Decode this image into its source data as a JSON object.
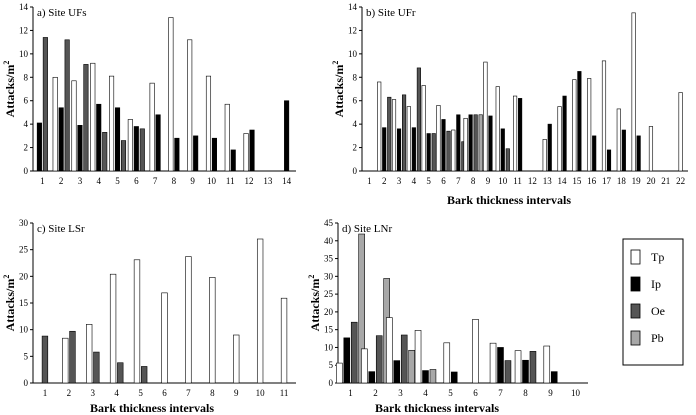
{
  "colors": {
    "Tp": "#ffffff",
    "Ip": "#000000",
    "Oe": "#555555",
    "Pb": "#a8a8a8"
  },
  "legend": {
    "items": [
      "Tp",
      "Ip",
      "Oe",
      "Pb"
    ]
  },
  "chart_data": [
    {
      "type": "bar",
      "title": "a) Site UFs",
      "xlabel": "",
      "ylabel": "Attacks/m",
      "ylabel_sup": "2",
      "ylim": [
        0,
        14
      ],
      "yticks": [
        0,
        2,
        4,
        6,
        8,
        10,
        12,
        14
      ],
      "categories": [
        "1",
        "2",
        "3",
        "4",
        "5",
        "6",
        "7",
        "8",
        "9",
        "10",
        "11",
        "12",
        "13",
        "14"
      ],
      "series": [
        {
          "name": "Tp",
          "values": [
            null,
            8.0,
            7.7,
            9.2,
            8.1,
            4.4,
            7.5,
            13.1,
            11.2,
            8.1,
            5.7,
            3.2,
            null,
            null
          ]
        },
        {
          "name": "Ip",
          "values": [
            4.1,
            5.4,
            3.9,
            5.7,
            5.4,
            3.8,
            4.8,
            2.8,
            3.0,
            2.8,
            1.8,
            3.5,
            null,
            6.0
          ]
        },
        {
          "name": "Oe",
          "values": [
            11.4,
            11.2,
            9.1,
            3.3,
            2.6,
            3.6,
            null,
            null,
            null,
            null,
            null,
            null,
            null,
            null
          ]
        }
      ]
    },
    {
      "type": "bar",
      "title": "b) Site UFr",
      "xlabel": "Bark thickness intervals",
      "ylabel": "Attacks/m",
      "ylabel_sup": "2",
      "ylim": [
        0,
        14
      ],
      "yticks": [
        0,
        2,
        4,
        6,
        8,
        10,
        12,
        14
      ],
      "categories": [
        "1",
        "2",
        "3",
        "4",
        "5",
        "6",
        "7",
        "8",
        "9",
        "10",
        "11",
        "12",
        "13",
        "14",
        "15",
        "16",
        "17",
        "18",
        "19",
        "20",
        "21",
        "22"
      ],
      "series": [
        {
          "name": "Tp",
          "values": [
            null,
            7.6,
            6.1,
            5.5,
            7.3,
            5.6,
            3.5,
            4.5,
            9.3,
            7.2,
            6.4,
            null,
            2.7,
            5.5,
            7.8,
            7.9,
            9.4,
            5.3,
            13.5,
            3.8,
            null,
            6.7
          ]
        },
        {
          "name": "Ip",
          "values": [
            null,
            3.7,
            3.6,
            3.7,
            3.2,
            4.4,
            4.8,
            4.8,
            4.7,
            3.6,
            6.2,
            null,
            4.0,
            6.4,
            8.5,
            3.0,
            1.8,
            3.5,
            3.0,
            null,
            null,
            null
          ]
        },
        {
          "name": "Oe",
          "values": [
            null,
            6.3,
            6.5,
            8.8,
            3.2,
            3.4,
            2.5,
            4.8,
            null,
            1.9,
            null,
            null,
            null,
            null,
            null,
            null,
            null,
            null,
            null,
            null,
            null,
            null
          ]
        },
        {
          "name": "Pb",
          "values": [
            null,
            null,
            null,
            null,
            null,
            null,
            null,
            4.8,
            null,
            null,
            null,
            null,
            null,
            null,
            null,
            null,
            null,
            null,
            null,
            null,
            null,
            null
          ]
        }
      ]
    },
    {
      "type": "bar",
      "title": "c) Site LSr",
      "xlabel": "Bark thickness intervals",
      "ylabel": "Attacks/m",
      "ylabel_sup": "2",
      "ylim": [
        0,
        30
      ],
      "yticks": [
        0,
        5,
        10,
        15,
        20,
        25,
        30
      ],
      "categories": [
        "1",
        "2",
        "3",
        "4",
        "5",
        "6",
        "7",
        "8",
        "9",
        "10",
        "11"
      ],
      "series": [
        {
          "name": "Tp",
          "values": [
            null,
            8.4,
            11.0,
            20.4,
            23.1,
            16.9,
            23.7,
            19.8,
            9.0,
            27.0,
            15.9
          ]
        },
        {
          "name": "Oe",
          "values": [
            8.8,
            9.7,
            5.8,
            3.8,
            3.1,
            null,
            null,
            null,
            null,
            null,
            null
          ]
        }
      ]
    },
    {
      "type": "bar",
      "title": "d) Site LNr",
      "xlabel": "Bark thickness intervals",
      "ylabel": "Attacks/m",
      "ylabel_sup": "2",
      "ylim": [
        0,
        45
      ],
      "yticks": [
        0,
        5,
        10,
        15,
        20,
        25,
        30,
        35,
        40,
        45
      ],
      "categories": [
        "1",
        "2",
        "3",
        "4",
        "5",
        "6",
        "7",
        "8",
        "9",
        "10"
      ],
      "series": [
        {
          "name": "Tp",
          "values": [
            5.6,
            9.6,
            18.4,
            14.8,
            11.3,
            17.9,
            11.2,
            9.1,
            10.4,
            null
          ]
        },
        {
          "name": "Ip",
          "values": [
            12.7,
            3.2,
            6.3,
            3.5,
            3.1,
            null,
            10.0,
            6.4,
            3.2,
            null
          ]
        },
        {
          "name": "Oe",
          "values": [
            17.1,
            13.3,
            13.5,
            null,
            null,
            null,
            6.3,
            8.9,
            null,
            null
          ]
        },
        {
          "name": "Pb",
          "values": [
            41.9,
            29.4,
            9.2,
            3.8,
            null,
            null,
            null,
            null,
            null,
            null
          ]
        }
      ]
    }
  ]
}
